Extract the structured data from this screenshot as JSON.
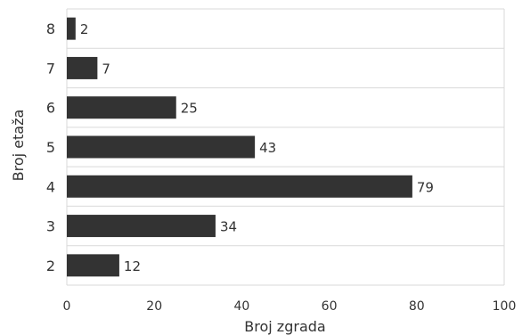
{
  "chart_data": {
    "type": "bar",
    "orientation": "horizontal",
    "categories": [
      "2",
      "3",
      "4",
      "5",
      "6",
      "7",
      "8"
    ],
    "values": [
      12,
      34,
      79,
      43,
      25,
      7,
      2
    ],
    "data_labels": [
      "12",
      "34",
      "79",
      "43",
      "25",
      "7",
      "2"
    ],
    "xlabel": "Broj zgrada",
    "ylabel": "Broj etaža",
    "xlim": [
      0,
      100
    ],
    "xticks": [
      0,
      20,
      40,
      60,
      80,
      100
    ],
    "grid": "horizontal",
    "legend": "none",
    "colors": {
      "bar": "#333333",
      "grid": "#d9d9d9",
      "text": "#333333"
    }
  }
}
